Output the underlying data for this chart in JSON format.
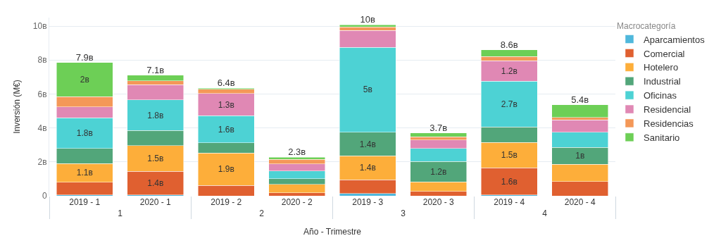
{
  "chart_data": {
    "type": "bar",
    "stacked": true,
    "legend_title": "Macrocategoría",
    "xlabel": "Año - Trimestre",
    "ylabel": "Inversión (M€)",
    "categories": [
      "2019 - 1",
      "2020 - 1",
      "2019 - 2",
      "2020 - 2",
      "2019 - 3",
      "2020 - 3",
      "2019 - 4",
      "2020 - 4"
    ],
    "annotations": [
      "1",
      "2",
      "3",
      "4"
    ],
    "ylim": [
      0,
      10.5
    ],
    "yticks": [
      0,
      {
        "value": 2,
        "label": "2в"
      },
      {
        "value": 4,
        "label": "4в"
      },
      {
        "value": 6,
        "label": "6в"
      },
      {
        "value": 8,
        "label": "8в"
      },
      {
        "value": 10,
        "label": "10в"
      }
    ],
    "grid": "y",
    "legend": "right",
    "totals": [
      "7.9в",
      "7.1в",
      "6.4в",
      "2.3в",
      "10в",
      "3.7в",
      "8.6в",
      "5.4в"
    ],
    "series": [
      {
        "name": "Aparcamientos",
        "color": "#4fb8dc",
        "values": [
          0.05,
          0.05,
          null,
          null,
          0.13,
          null,
          0.05,
          null
        ],
        "value_labels": [
          null,
          null,
          null,
          null,
          null,
          null,
          null,
          null
        ]
      },
      {
        "name": "Comercial",
        "color": "#e06030",
        "values": [
          0.75,
          1.4,
          0.62,
          0.17,
          0.82,
          0.25,
          1.6,
          0.85
        ],
        "value_labels": [
          null,
          "1.4в",
          null,
          null,
          null,
          null,
          "1.6в",
          null
        ]
      },
      {
        "name": "Hotelero",
        "color": "#fdae3a",
        "values": [
          1.1,
          1.5,
          1.9,
          0.5,
          1.4,
          0.58,
          1.5,
          1.0
        ],
        "value_labels": [
          "1.1в",
          "1.5в",
          "1.9в",
          null,
          "1.4в",
          null,
          "1.5в",
          null
        ]
      },
      {
        "name": "Industrial",
        "color": "#52a67a",
        "values": [
          0.9,
          0.9,
          0.6,
          0.33,
          1.4,
          1.2,
          0.9,
          1.0
        ],
        "value_labels": [
          null,
          null,
          null,
          null,
          "1.4в",
          "1.2в",
          null,
          "1в"
        ]
      },
      {
        "name": "Oficinas",
        "color": "#4dd2d4",
        "values": [
          1.8,
          1.8,
          1.6,
          0.47,
          5.0,
          0.77,
          2.7,
          0.9
        ],
        "value_labels": [
          "1.8в",
          "1.8в",
          "1.6в",
          null,
          "5в",
          null,
          "2.7в",
          null
        ]
      },
      {
        "name": "Residencial",
        "color": "#e088b4",
        "values": [
          0.65,
          0.9,
          1.3,
          0.4,
          1.0,
          0.48,
          1.2,
          0.73
        ],
        "value_labels": [
          null,
          null,
          "1.3в",
          null,
          null,
          null,
          "1.2в",
          null
        ]
      },
      {
        "name": "Residencias",
        "color": "#f49858",
        "values": [
          0.6,
          0.22,
          0.25,
          0.28,
          0.2,
          0.2,
          0.25,
          0.13
        ],
        "value_labels": [
          null,
          null,
          null,
          null,
          null,
          null,
          null,
          null
        ]
      },
      {
        "name": "Sanitario",
        "color": "#6dcf56",
        "values": [
          2.0,
          0.33,
          0.08,
          0.12,
          0.13,
          0.22,
          0.4,
          0.75
        ],
        "value_labels": [
          "2в",
          null,
          null,
          null,
          null,
          null,
          null,
          null
        ]
      }
    ]
  }
}
